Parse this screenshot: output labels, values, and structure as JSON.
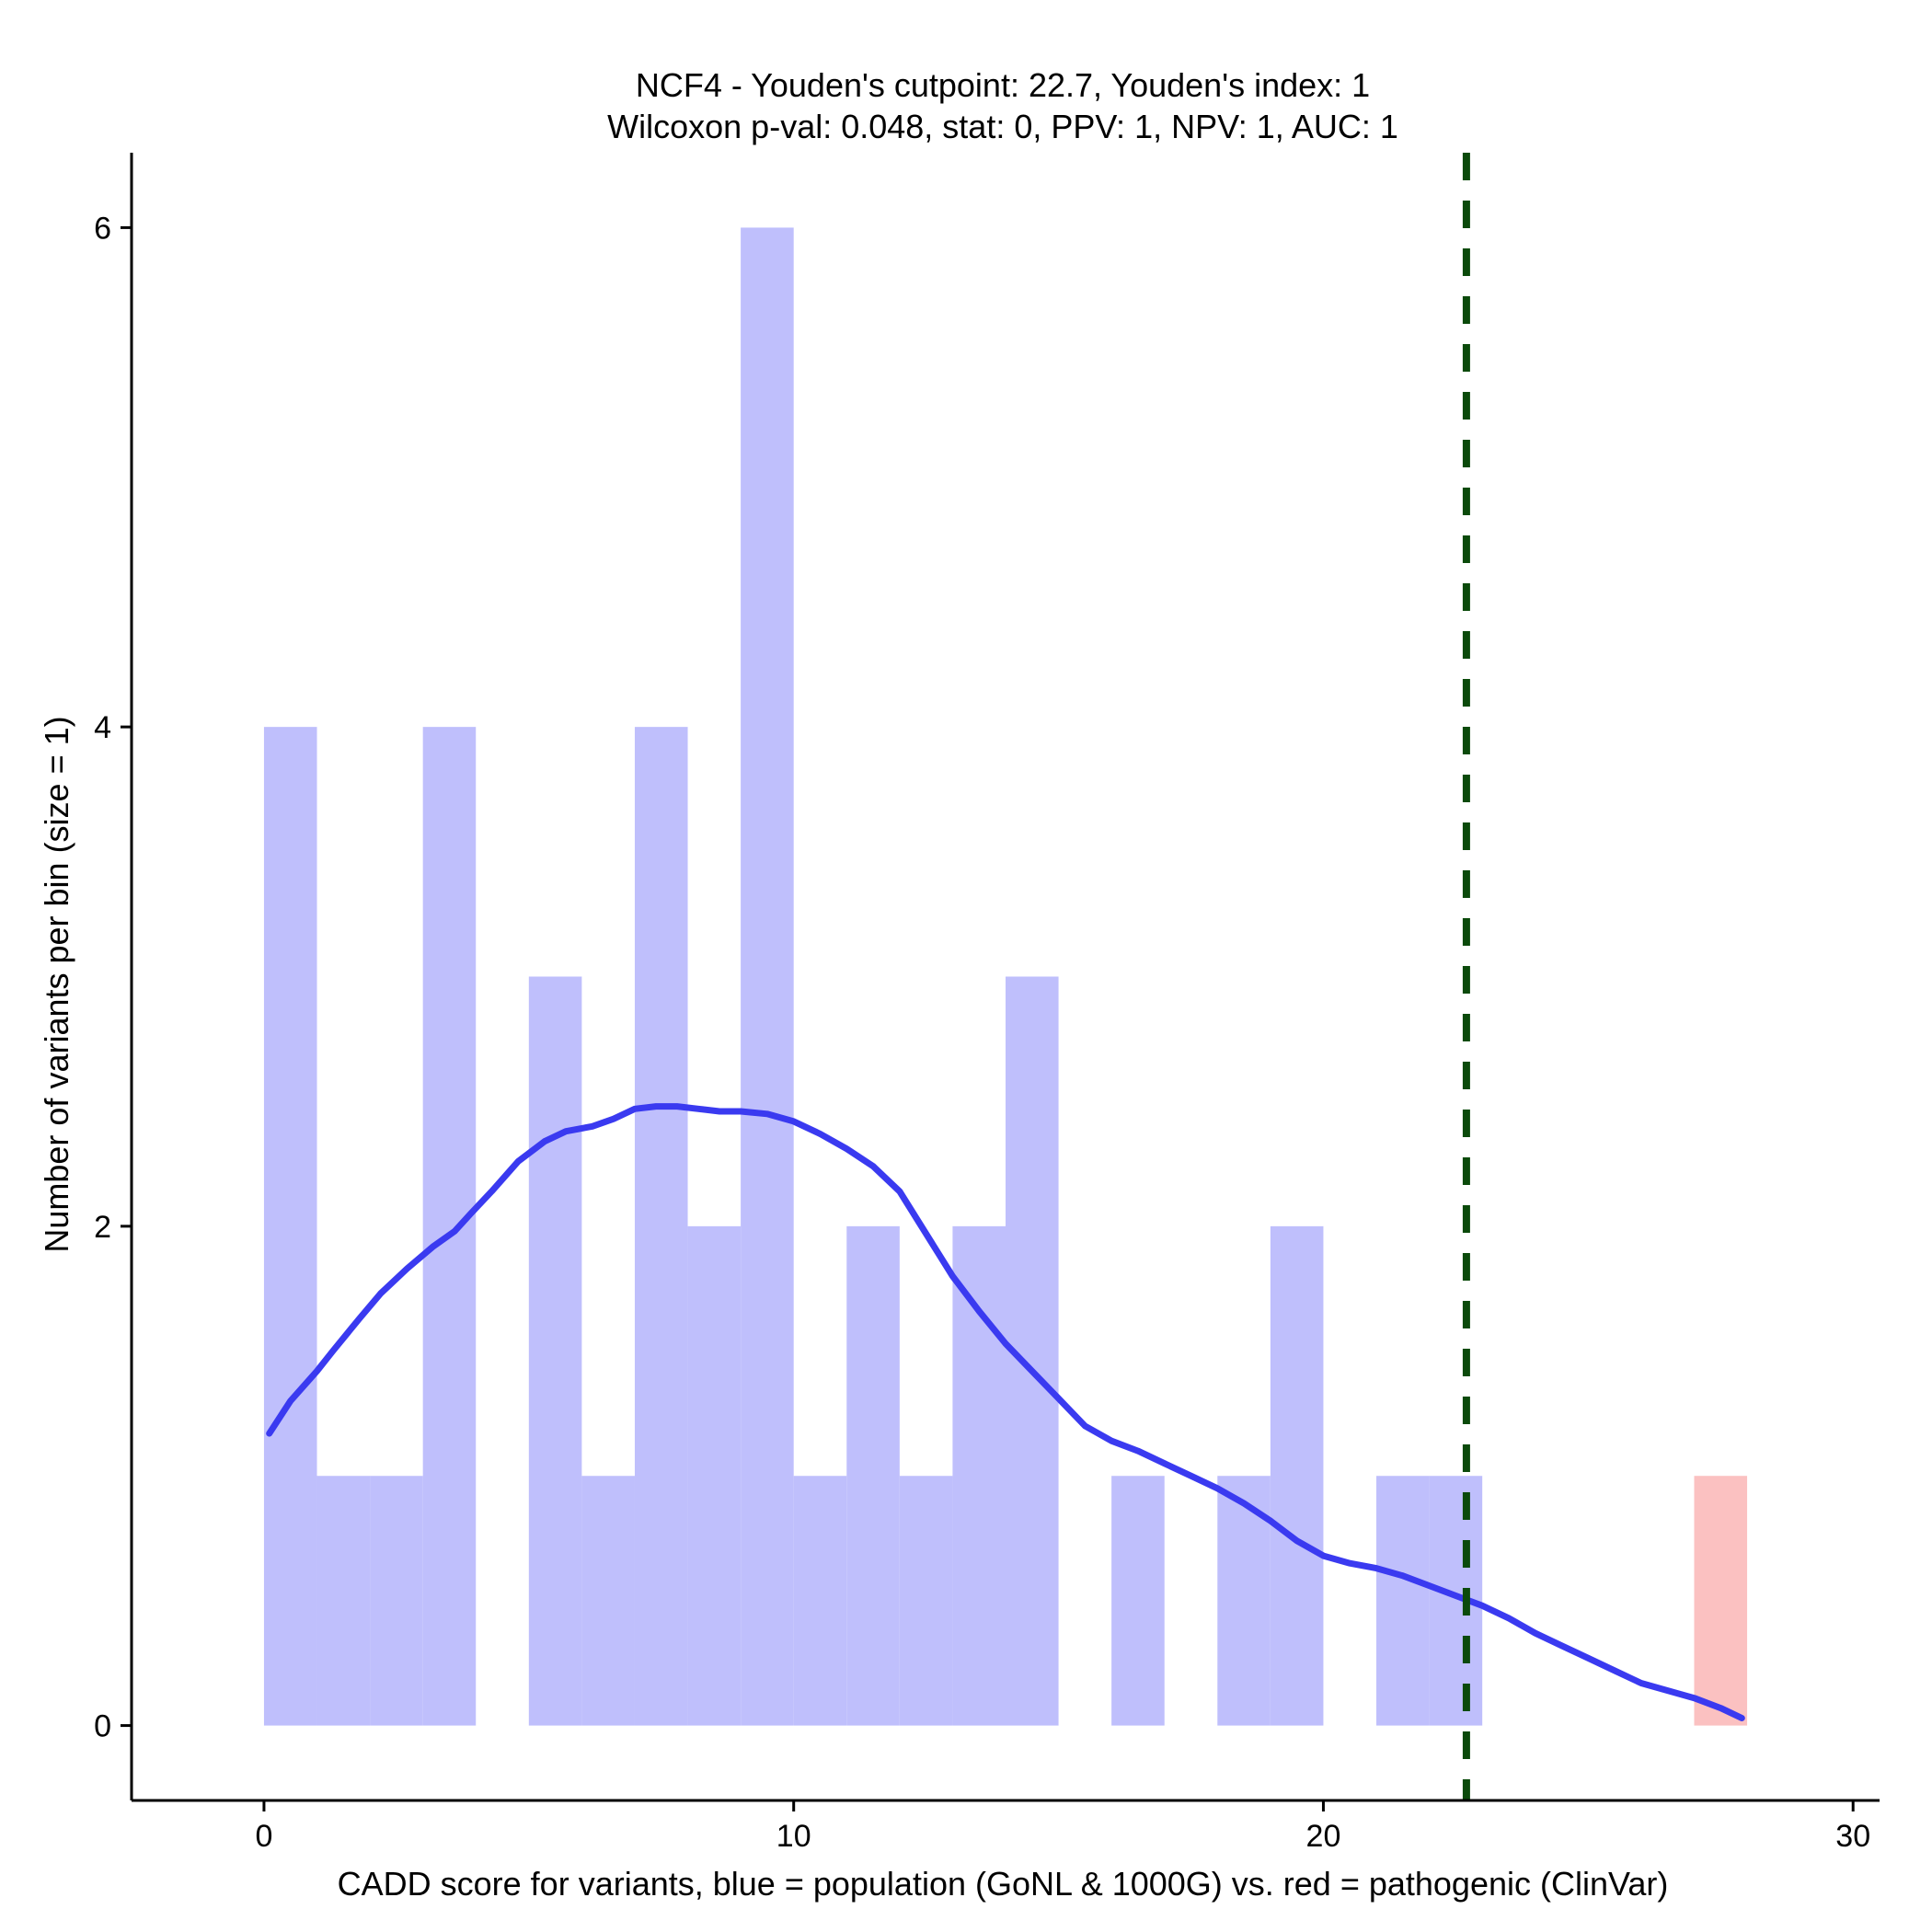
{
  "chart_data": {
    "type": "bar",
    "title_line1": "NCF4 - Youden's cutpoint: 22.7, Youden's index: 1",
    "title_line2": "Wilcoxon p-val: 0.048, stat: 0, PPV: 1, NPV: 1, AUC: 1",
    "xlabel": "CADD score for variants, blue = population (GoNL & 1000G) vs. red = pathogenic (ClinVar)",
    "ylabel": "Number of variants per bin (size = 1)",
    "xlim": [
      -2.5,
      30.5
    ],
    "ylim": [
      -0.3,
      6.3
    ],
    "x_ticks": [
      0,
      10,
      20,
      30
    ],
    "y_ticks": [
      0,
      2,
      4,
      6
    ],
    "bin_size": 1,
    "colors": {
      "population": "#bfbffc",
      "pathogenic": "#fbc1c1",
      "density": "#3a3af0",
      "cutpoint": "#0b4a0b"
    },
    "series": [
      {
        "name": "blue = population (GoNL & 1000G)",
        "bins": [
          {
            "start": 0,
            "count": 4
          },
          {
            "start": 1,
            "count": 1
          },
          {
            "start": 2,
            "count": 1
          },
          {
            "start": 3,
            "count": 4
          },
          {
            "start": 5,
            "count": 3
          },
          {
            "start": 6,
            "count": 1
          },
          {
            "start": 7,
            "count": 4
          },
          {
            "start": 8,
            "count": 2
          },
          {
            "start": 9,
            "count": 6
          },
          {
            "start": 10,
            "count": 1
          },
          {
            "start": 11,
            "count": 2
          },
          {
            "start": 12,
            "count": 1
          },
          {
            "start": 13,
            "count": 2
          },
          {
            "start": 14,
            "count": 3
          },
          {
            "start": 16,
            "count": 1
          },
          {
            "start": 18,
            "count": 1
          },
          {
            "start": 19,
            "count": 2
          },
          {
            "start": 21,
            "count": 1
          },
          {
            "start": 22,
            "count": 1
          }
        ]
      },
      {
        "name": "red = pathogenic (ClinVar)",
        "bins": [
          {
            "start": 27,
            "count": 1
          }
        ]
      }
    ],
    "density_curve": {
      "x": [
        0.1,
        0.5,
        1.0,
        1.3,
        1.8,
        2.2,
        2.7,
        3.2,
        3.6,
        3.9,
        4.3,
        4.8,
        5.3,
        5.7,
        6.2,
        6.6,
        7.0,
        7.4,
        7.8,
        8.2,
        8.6,
        9.0,
        9.5,
        10.0,
        10.5,
        11.0,
        11.5,
        12.0,
        12.5,
        13.0,
        13.5,
        14.0,
        14.5,
        15.0,
        15.5,
        16.0,
        16.5,
        17.0,
        17.5,
        18.0,
        18.5,
        19.0,
        19.5,
        20.0,
        20.5,
        21.0,
        21.5,
        22.0,
        22.5,
        23.0,
        23.5,
        24.0,
        24.5,
        25.0,
        25.5,
        26.0,
        26.5,
        27.0,
        27.5,
        27.9
      ],
      "y": [
        1.17,
        1.3,
        1.42,
        1.5,
        1.63,
        1.73,
        1.83,
        1.92,
        1.98,
        2.05,
        2.14,
        2.26,
        2.34,
        2.38,
        2.4,
        2.43,
        2.47,
        2.48,
        2.48,
        2.47,
        2.46,
        2.46,
        2.45,
        2.42,
        2.37,
        2.31,
        2.24,
        2.14,
        1.97,
        1.8,
        1.66,
        1.53,
        1.42,
        1.31,
        1.2,
        1.14,
        1.1,
        1.05,
        1.0,
        0.95,
        0.89,
        0.82,
        0.74,
        0.68,
        0.65,
        0.63,
        0.6,
        0.56,
        0.52,
        0.48,
        0.43,
        0.37,
        0.32,
        0.27,
        0.22,
        0.17,
        0.14,
        0.11,
        0.07,
        0.03
      ]
    },
    "cutpoint": {
      "x": 22.7
    }
  }
}
